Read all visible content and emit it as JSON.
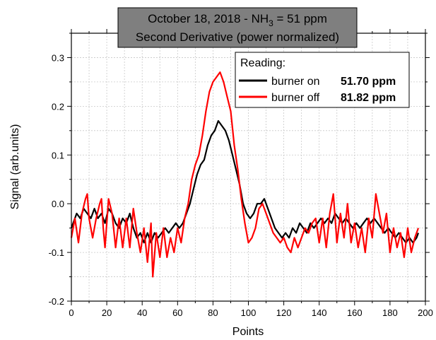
{
  "chart_data": {
    "type": "line",
    "title_line1_prefix": "October 18, 2018 - NH",
    "title_line1_sub": "3",
    "title_line1_suffix": " = 51 ppm",
    "title_line2": "Second Derivative (power normalized)",
    "title_box_color": "#7f7f7f",
    "xlabel": "Points",
    "ylabel": "Signal (arb.units)",
    "xlim": [
      0,
      200
    ],
    "ylim": [
      -0.2,
      0.35
    ],
    "x_ticks": [
      "0",
      "20",
      "40",
      "60",
      "80",
      "100",
      "120",
      "140",
      "160",
      "180",
      "200"
    ],
    "y_ticks": [
      "-0.2",
      "-0.1",
      "0.0",
      "0.1",
      "0.2",
      "0.3"
    ],
    "grid": true,
    "legend_title": "Reading:",
    "legend_position": "top-right",
    "series": [
      {
        "name": "burner on",
        "reading": "51.70 ppm",
        "color": "#000000",
        "points": [
          [
            0,
            -0.05
          ],
          [
            3,
            -0.02
          ],
          [
            5,
            -0.03
          ],
          [
            7,
            -0.01
          ],
          [
            9,
            -0.02
          ],
          [
            11,
            -0.03
          ],
          [
            13,
            -0.01
          ],
          [
            15,
            -0.03
          ],
          [
            17,
            -0.02
          ],
          [
            19,
            -0.04
          ],
          [
            21,
            -0.01
          ],
          [
            23,
            -0.02
          ],
          [
            25,
            -0.04
          ],
          [
            27,
            -0.05
          ],
          [
            29,
            -0.03
          ],
          [
            31,
            -0.04
          ],
          [
            33,
            -0.02
          ],
          [
            35,
            -0.05
          ],
          [
            37,
            -0.07
          ],
          [
            39,
            -0.06
          ],
          [
            41,
            -0.08
          ],
          [
            43,
            -0.06
          ],
          [
            45,
            -0.08
          ],
          [
            47,
            -0.06
          ],
          [
            49,
            -0.07
          ],
          [
            51,
            -0.06
          ],
          [
            53,
            -0.05
          ],
          [
            55,
            -0.06
          ],
          [
            57,
            -0.05
          ],
          [
            59,
            -0.04
          ],
          [
            61,
            -0.05
          ],
          [
            63,
            -0.04
          ],
          [
            65,
            -0.02
          ],
          [
            67,
            0.0
          ],
          [
            69,
            0.03
          ],
          [
            71,
            0.06
          ],
          [
            73,
            0.08
          ],
          [
            75,
            0.09
          ],
          [
            77,
            0.12
          ],
          [
            79,
            0.14
          ],
          [
            81,
            0.15
          ],
          [
            83,
            0.17
          ],
          [
            85,
            0.16
          ],
          [
            87,
            0.15
          ],
          [
            89,
            0.13
          ],
          [
            91,
            0.1
          ],
          [
            93,
            0.07
          ],
          [
            95,
            0.04
          ],
          [
            97,
            0.0
          ],
          [
            99,
            -0.02
          ],
          [
            101,
            -0.03
          ],
          [
            103,
            -0.02
          ],
          [
            105,
            0.0
          ],
          [
            107,
            0.0
          ],
          [
            109,
            0.01
          ],
          [
            111,
            -0.01
          ],
          [
            113,
            -0.03
          ],
          [
            115,
            -0.05
          ],
          [
            117,
            -0.06
          ],
          [
            119,
            -0.07
          ],
          [
            121,
            -0.06
          ],
          [
            123,
            -0.07
          ],
          [
            125,
            -0.05
          ],
          [
            127,
            -0.06
          ],
          [
            129,
            -0.04
          ],
          [
            131,
            -0.05
          ],
          [
            133,
            -0.06
          ],
          [
            135,
            -0.04
          ],
          [
            137,
            -0.05
          ],
          [
            139,
            -0.04
          ],
          [
            141,
            -0.03
          ],
          [
            143,
            -0.04
          ],
          [
            145,
            -0.03
          ],
          [
            147,
            -0.04
          ],
          [
            149,
            -0.02
          ],
          [
            151,
            -0.03
          ],
          [
            153,
            -0.04
          ],
          [
            155,
            -0.03
          ],
          [
            157,
            -0.04
          ],
          [
            159,
            -0.05
          ],
          [
            161,
            -0.04
          ],
          [
            163,
            -0.05
          ],
          [
            165,
            -0.04
          ],
          [
            167,
            -0.03
          ],
          [
            169,
            -0.04
          ],
          [
            171,
            -0.03
          ],
          [
            173,
            -0.04
          ],
          [
            175,
            -0.05
          ],
          [
            177,
            -0.06
          ],
          [
            179,
            -0.05
          ],
          [
            181,
            -0.06
          ],
          [
            183,
            -0.07
          ],
          [
            185,
            -0.06
          ],
          [
            187,
            -0.07
          ],
          [
            189,
            -0.08
          ],
          [
            191,
            -0.07
          ],
          [
            193,
            -0.08
          ],
          [
            195,
            -0.07
          ],
          [
            196,
            -0.06
          ]
        ]
      },
      {
        "name": "burner off",
        "reading": "81.82 ppm",
        "color": "#ff0000",
        "points": [
          [
            0,
            -0.07
          ],
          [
            2,
            -0.03
          ],
          [
            4,
            -0.08
          ],
          [
            6,
            -0.02
          ],
          [
            8,
            0.01
          ],
          [
            9,
            0.02
          ],
          [
            10,
            -0.03
          ],
          [
            12,
            -0.07
          ],
          [
            14,
            -0.03
          ],
          [
            16,
            0.0
          ],
          [
            17,
            0.01
          ],
          [
            18,
            -0.05
          ],
          [
            19,
            -0.09
          ],
          [
            21,
            0.01
          ],
          [
            23,
            -0.02
          ],
          [
            25,
            -0.09
          ],
          [
            27,
            -0.03
          ],
          [
            29,
            -0.09
          ],
          [
            31,
            -0.03
          ],
          [
            33,
            -0.09
          ],
          [
            35,
            -0.01
          ],
          [
            37,
            -0.06
          ],
          [
            39,
            -0.1
          ],
          [
            41,
            -0.05
          ],
          [
            43,
            -0.12
          ],
          [
            45,
            -0.04
          ],
          [
            46,
            -0.15
          ],
          [
            48,
            -0.06
          ],
          [
            50,
            -0.11
          ],
          [
            52,
            -0.05
          ],
          [
            54,
            -0.11
          ],
          [
            56,
            -0.07
          ],
          [
            58,
            -0.1
          ],
          [
            60,
            -0.05
          ],
          [
            62,
            -0.08
          ],
          [
            64,
            -0.03
          ],
          [
            66,
            0.0
          ],
          [
            68,
            0.05
          ],
          [
            70,
            0.08
          ],
          [
            72,
            0.1
          ],
          [
            74,
            0.14
          ],
          [
            76,
            0.19
          ],
          [
            78,
            0.23
          ],
          [
            80,
            0.25
          ],
          [
            82,
            0.26
          ],
          [
            84,
            0.27
          ],
          [
            86,
            0.25
          ],
          [
            88,
            0.22
          ],
          [
            90,
            0.19
          ],
          [
            92,
            0.12
          ],
          [
            94,
            0.07
          ],
          [
            96,
            0.01
          ],
          [
            98,
            -0.04
          ],
          [
            100,
            -0.08
          ],
          [
            102,
            -0.07
          ],
          [
            104,
            -0.05
          ],
          [
            106,
            -0.01
          ],
          [
            108,
            0.0
          ],
          [
            110,
            -0.02
          ],
          [
            112,
            -0.04
          ],
          [
            114,
            -0.06
          ],
          [
            116,
            -0.07
          ],
          [
            118,
            -0.08
          ],
          [
            120,
            -0.07
          ],
          [
            122,
            -0.09
          ],
          [
            124,
            -0.1
          ],
          [
            126,
            -0.07
          ],
          [
            128,
            -0.09
          ],
          [
            130,
            -0.07
          ],
          [
            132,
            -0.05
          ],
          [
            134,
            -0.06
          ],
          [
            136,
            -0.04
          ],
          [
            138,
            -0.03
          ],
          [
            140,
            -0.08
          ],
          [
            142,
            -0.03
          ],
          [
            144,
            -0.09
          ],
          [
            146,
            -0.02
          ],
          [
            148,
            0.02
          ],
          [
            150,
            -0.08
          ],
          [
            152,
            -0.02
          ],
          [
            154,
            -0.07
          ],
          [
            156,
            0.0
          ],
          [
            158,
            -0.08
          ],
          [
            160,
            -0.04
          ],
          [
            162,
            -0.09
          ],
          [
            164,
            -0.05
          ],
          [
            166,
            -0.1
          ],
          [
            168,
            -0.03
          ],
          [
            170,
            -0.07
          ],
          [
            172,
            0.02
          ],
          [
            174,
            -0.02
          ],
          [
            176,
            -0.06
          ],
          [
            178,
            -0.02
          ],
          [
            180,
            -0.1
          ],
          [
            182,
            -0.05
          ],
          [
            184,
            -0.09
          ],
          [
            186,
            -0.06
          ],
          [
            188,
            -0.11
          ],
          [
            190,
            -0.05
          ],
          [
            192,
            -0.1
          ],
          [
            194,
            -0.07
          ],
          [
            196,
            -0.05
          ]
        ]
      }
    ]
  }
}
